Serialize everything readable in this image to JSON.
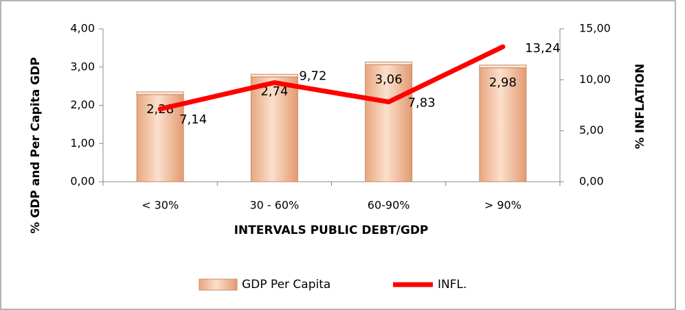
{
  "chart_data": {
    "type": "bar",
    "x_label": "INTERVALS PUBLIC DEBT/GDP",
    "y_label": "% GDP and Per Capita GDP",
    "y2_label": "% INFLATION",
    "categories": [
      "< 30%",
      "30 - 60%",
      "60-90%",
      "> 90%"
    ],
    "series": [
      {
        "name": "GDP Per Capita",
        "type": "bar",
        "color": "#f2bf9c",
        "values": [
          2.28,
          2.74,
          3.06,
          2.98
        ],
        "value_labels": [
          "2,28",
          "2,74",
          "3,06",
          "2,98"
        ]
      },
      {
        "name": "INFL.",
        "type": "line",
        "axis": "y2",
        "color": "#ff0000",
        "values": [
          7.14,
          9.72,
          7.83,
          13.24
        ],
        "value_labels": [
          "7,14",
          "9,72",
          "7,83",
          "13,24"
        ]
      }
    ],
    "ylim": [
      0,
      4
    ],
    "yticks": [
      {
        "value": 0,
        "label": "0,00"
      },
      {
        "value": 1,
        "label": "1,00"
      },
      {
        "value": 2,
        "label": "2,00"
      },
      {
        "value": 3,
        "label": "3,00"
      },
      {
        "value": 4,
        "label": "4,00"
      }
    ],
    "y2lim": [
      0,
      15
    ],
    "y2ticks": [
      {
        "value": 0,
        "label": "0,00"
      },
      {
        "value": 5,
        "label": "5,00"
      },
      {
        "value": 10,
        "label": "10,00"
      },
      {
        "value": 15,
        "label": "15,00"
      }
    ],
    "legend": "bottom"
  }
}
